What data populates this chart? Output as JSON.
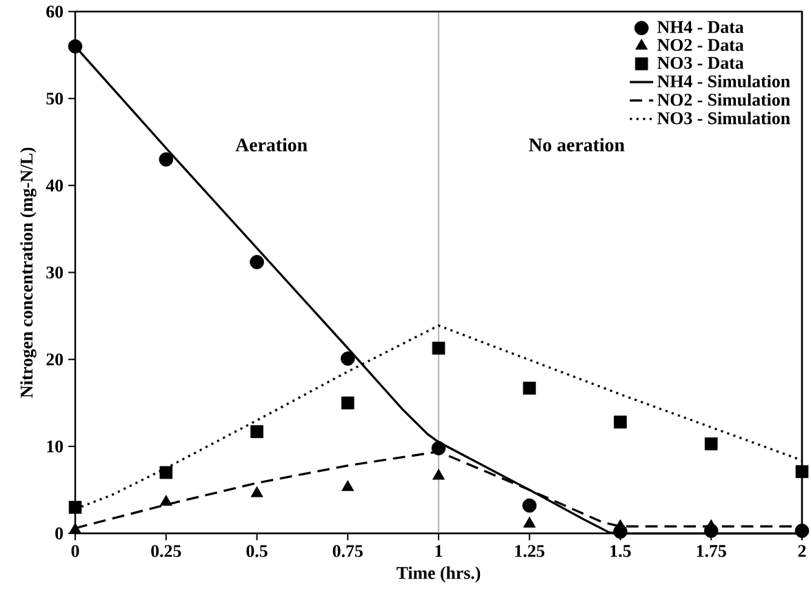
{
  "chart_data": {
    "type": "line",
    "xlabel": "Time (hrs.)",
    "ylabel": "Nitrogen concentration (mg-N/L)",
    "xlim": [
      0,
      2
    ],
    "ylim": [
      0,
      60
    ],
    "xticks": [
      0,
      0.25,
      0.5,
      0.75,
      1,
      1.25,
      1.5,
      1.75,
      2
    ],
    "yticks": [
      0,
      10,
      20,
      30,
      40,
      50,
      60
    ],
    "grid": false,
    "legend": "top right",
    "annotations": [
      "Aeration",
      "No aeration"
    ],
    "ref_lines": [
      {
        "axis": "x",
        "value": 1,
        "color": "#808080"
      }
    ],
    "series": [
      {
        "name": "NH4 - Data",
        "type": "scatter",
        "marker": "circle",
        "color": "#000000",
        "x": [
          0,
          0.25,
          0.5,
          0.75,
          1,
          1.25,
          1.5,
          1.75,
          2
        ],
        "values": [
          56,
          43,
          31.2,
          20.1,
          9.8,
          3.2,
          0.2,
          0.3,
          0.3
        ]
      },
      {
        "name": "NO2 - Data",
        "type": "scatter",
        "marker": "triangle",
        "color": "#000000",
        "x": [
          0,
          0.25,
          0.5,
          0.75,
          1,
          1.25,
          1.5,
          1.75
        ],
        "values": [
          0.4,
          3.6,
          4.6,
          5.3,
          6.6,
          1.1,
          0.8,
          0.8
        ]
      },
      {
        "name": "NO3 - Data",
        "type": "scatter",
        "marker": "square",
        "color": "#000000",
        "x": [
          0,
          0.25,
          0.5,
          0.75,
          1,
          1.25,
          1.5,
          1.75,
          2
        ],
        "values": [
          3.0,
          7.0,
          11.7,
          15.0,
          21.3,
          16.7,
          12.8,
          10.3,
          7.1
        ]
      },
      {
        "name": "NH4 - Simulation",
        "line_style": "solid",
        "color": "#000000",
        "x": [
          0,
          0.25,
          0.5,
          0.75,
          0.9,
          0.97,
          1,
          1.25,
          1.4,
          1.47,
          1.5,
          2
        ],
        "values": [
          56,
          44.3,
          32.8,
          21.3,
          14.3,
          11.4,
          10.5,
          5.0,
          1.6,
          0.1,
          0,
          0
        ]
      },
      {
        "name": "NO2 - Simulation",
        "line_style": "dashed",
        "color": "#000000",
        "x": [
          0,
          0.25,
          0.5,
          0.75,
          1,
          1.25,
          1.45,
          1.5,
          2
        ],
        "values": [
          0.6,
          3.3,
          5.8,
          7.8,
          9.4,
          5.0,
          1.3,
          0.8,
          0.8
        ]
      },
      {
        "name": "NO3 - Simulation",
        "line_style": "dotted",
        "color": "#000000",
        "x": [
          0,
          0.1,
          0.25,
          0.5,
          0.75,
          1,
          1.5,
          2
        ],
        "values": [
          2.8,
          4.4,
          7.5,
          13.0,
          18.6,
          23.9,
          16.0,
          8.4
        ]
      }
    ]
  }
}
